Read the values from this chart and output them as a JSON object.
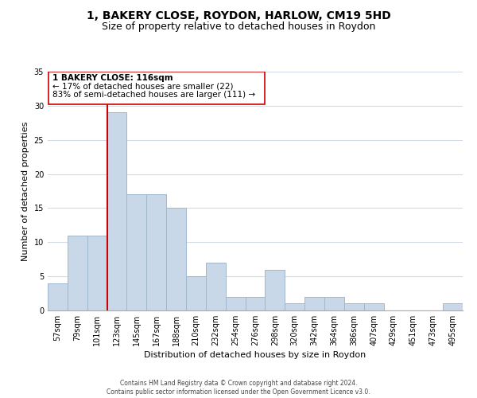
{
  "title": "1, BAKERY CLOSE, ROYDON, HARLOW, CM19 5HD",
  "subtitle": "Size of property relative to detached houses in Roydon",
  "xlabel": "Distribution of detached houses by size in Roydon",
  "ylabel": "Number of detached properties",
  "bar_color": "#c8d8e8",
  "bar_edge_color": "#a0b8cc",
  "bins": [
    "57sqm",
    "79sqm",
    "101sqm",
    "123sqm",
    "145sqm",
    "167sqm",
    "188sqm",
    "210sqm",
    "232sqm",
    "254sqm",
    "276sqm",
    "298sqm",
    "320sqm",
    "342sqm",
    "364sqm",
    "386sqm",
    "407sqm",
    "429sqm",
    "451sqm",
    "473sqm",
    "495sqm"
  ],
  "values": [
    4,
    11,
    11,
    29,
    17,
    17,
    15,
    5,
    7,
    2,
    2,
    6,
    1,
    2,
    2,
    1,
    1,
    0,
    0,
    0,
    1
  ],
  "ylim": [
    0,
    35
  ],
  "yticks": [
    0,
    5,
    10,
    15,
    20,
    25,
    30,
    35
  ],
  "ref_line_label": "1 BAKERY CLOSE: 116sqm",
  "annotation_line1": "← 17% of detached houses are smaller (22)",
  "annotation_line2": "83% of semi-detached houses are larger (111) →",
  "ref_line_color": "#cc0000",
  "footer_line1": "Contains HM Land Registry data © Crown copyright and database right 2024.",
  "footer_line2": "Contains public sector information licensed under the Open Government Licence v3.0.",
  "background_color": "#ffffff",
  "grid_color": "#d0dce8",
  "title_fontsize": 10,
  "subtitle_fontsize": 9,
  "axis_label_fontsize": 8,
  "tick_fontsize": 7,
  "annotation_fontsize": 7.5,
  "footer_fontsize": 5.5
}
